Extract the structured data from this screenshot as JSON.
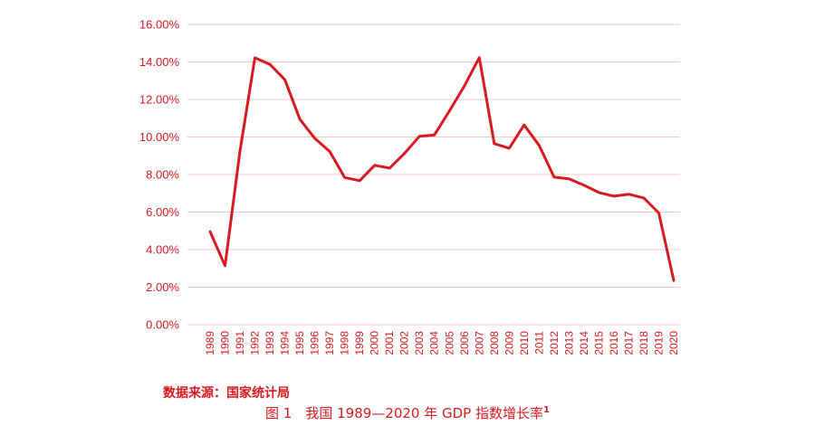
{
  "chart_data": {
    "type": "line",
    "x": [
      "1989",
      "1990",
      "1991",
      "1992",
      "1993",
      "1994",
      "1995",
      "1996",
      "1997",
      "1998",
      "1999",
      "2000",
      "2001",
      "2002",
      "2003",
      "2004",
      "2005",
      "2006",
      "2007",
      "2008",
      "2009",
      "2010",
      "2011",
      "2012",
      "2013",
      "2014",
      "2015",
      "2016",
      "2017",
      "2018",
      "2019",
      "2020"
    ],
    "series": [
      {
        "values": [
          4.96,
          3.14,
          9.25,
          14.22,
          13.87,
          13.05,
          10.95,
          9.93,
          9.23,
          7.84,
          7.67,
          8.49,
          8.34,
          9.13,
          10.04,
          10.11,
          11.39,
          12.72,
          14.23,
          9.65,
          9.4,
          10.64,
          9.55,
          7.86,
          7.77,
          7.43,
          7.04,
          6.85,
          6.95,
          6.75,
          5.95,
          2.35
        ]
      }
    ],
    "yticks": [
      "0.00%",
      "2.00%",
      "4.00%",
      "6.00%",
      "8.00%",
      "10.00%",
      "12.00%",
      "14.00%",
      "16.00%"
    ],
    "ylim": [
      0,
      16
    ],
    "grid": true,
    "line_color": "#d71920",
    "grid_color": "#f3c7c7"
  },
  "source_label": "数据来源：国家统计局",
  "caption": "图 1　我国 1989—2020 年 GDP 指数增长率",
  "caption_note": "1"
}
